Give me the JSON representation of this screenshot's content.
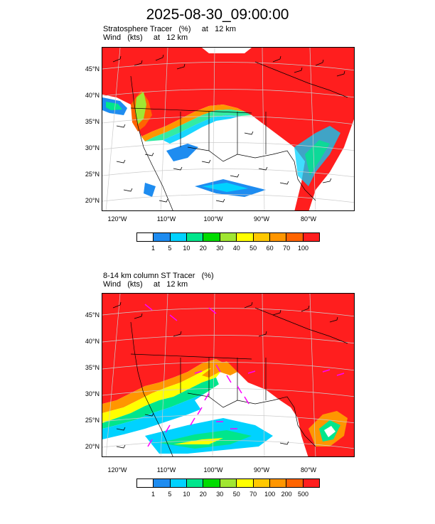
{
  "title": "2025-08-30_09:00:00",
  "panels": [
    {
      "label_line1": "Stratosphere Tracer   (%)     at   12 km",
      "label_line2": "Wind   (kts)     at   12 km",
      "colorbar": {
        "labels": [
          "1",
          "5",
          "10",
          "20",
          "30",
          "40",
          "50",
          "60",
          "70",
          "100"
        ],
        "colors": [
          "#ffffff",
          "#1e8cf0",
          "#00d2ff",
          "#00e68c",
          "#00dc00",
          "#a0e632",
          "#ffff00",
          "#ffc800",
          "#ff9600",
          "#ff6400",
          "#ff1e1e"
        ]
      }
    },
    {
      "label_line1": "8-14 km column ST Tracer   (%)",
      "label_line2": "Wind   (kts)     at   12 km",
      "colorbar": {
        "labels": [
          "1",
          "5",
          "10",
          "20",
          "30",
          "50",
          "70",
          "100",
          "200",
          "500"
        ],
        "colors": [
          "#ffffff",
          "#1e8cf0",
          "#00d2ff",
          "#00e68c",
          "#00dc00",
          "#a0e632",
          "#ffff00",
          "#ffc800",
          "#ff9600",
          "#ff6400",
          "#ff1e1e"
        ]
      }
    }
  ],
  "lat_labels": [
    "45°N",
    "40°N",
    "35°N",
    "30°N",
    "25°N",
    "20°N"
  ],
  "lon_labels": [
    "120°W",
    "110°W",
    "100°W",
    "90°W",
    "80°W"
  ]
}
